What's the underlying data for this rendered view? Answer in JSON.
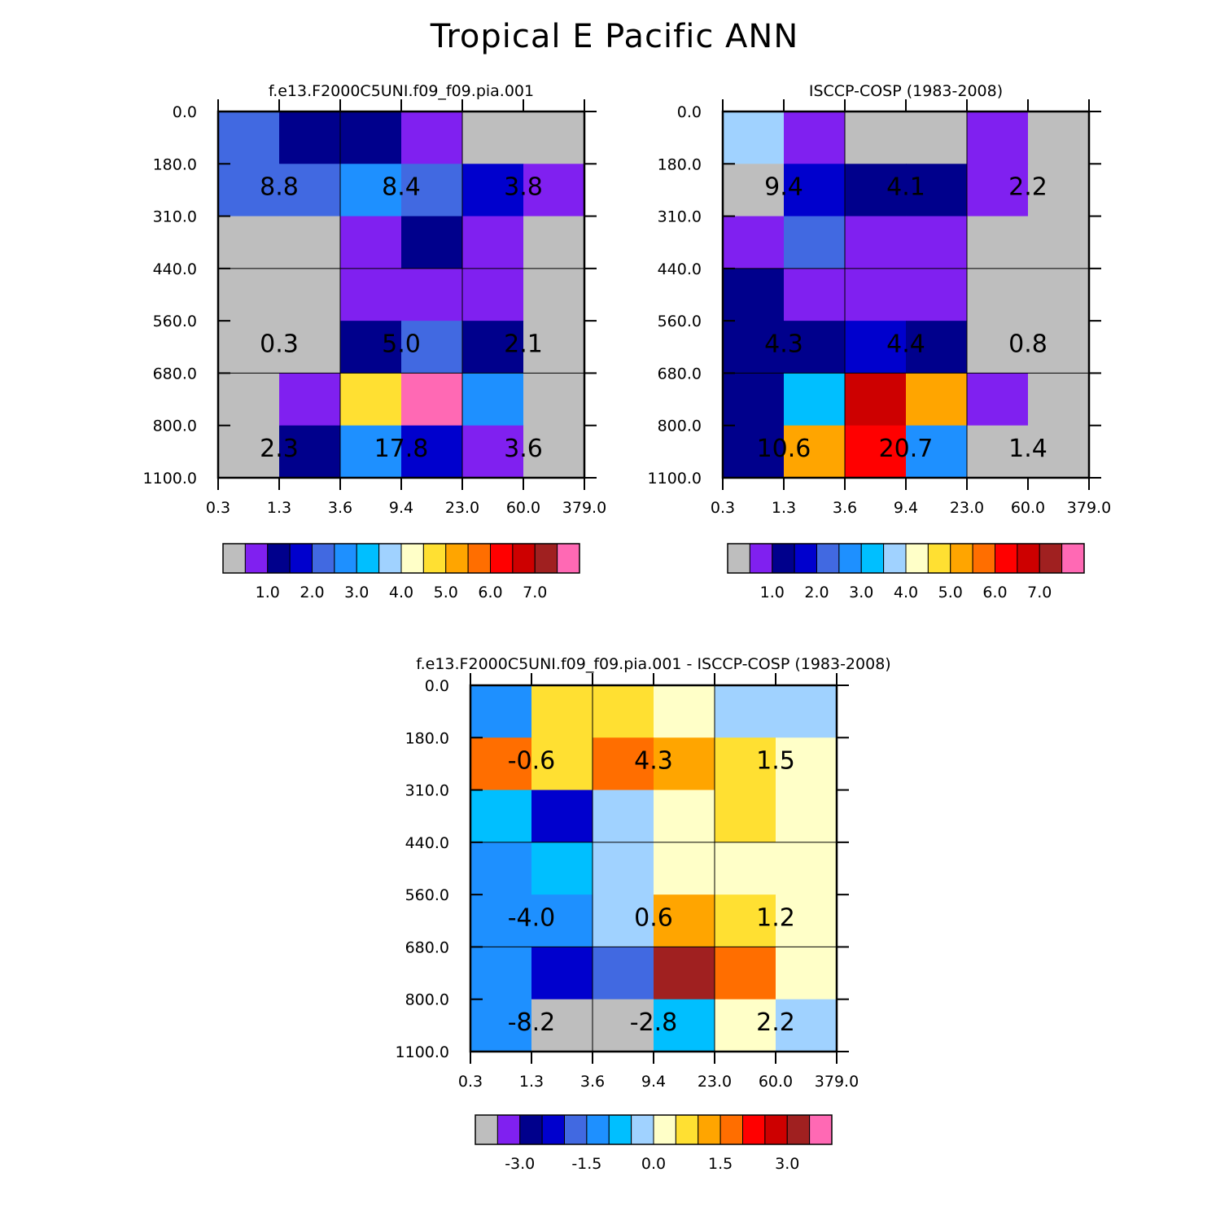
{
  "page_title": "Tropical E Pacific ANN",
  "colors": {
    "grey": "#bebebe",
    "purple": "#8020f0",
    "navy": "#00008c",
    "blue": "#0000cd",
    "royal": "#4169e1",
    "dodger": "#1e90ff",
    "sky": "#00bfff",
    "lightblue": "#a0d2ff",
    "cream": "#ffffc8",
    "yellow": "#ffe032",
    "gold": "#ffa500",
    "orange": "#ff6e00",
    "red": "#ff0000",
    "darkred": "#cd0000",
    "brown": "#a02020",
    "pink": "#ff69b4"
  },
  "chart_data": [
    {
      "type": "heatmap",
      "title": "f.e13.F2000C5UNI.f09_f09.pia.001",
      "xtick_labels": [
        "0.3",
        "1.3",
        "3.6",
        "9.4",
        "23.0",
        "60.0",
        "379.0"
      ],
      "ytick_labels": [
        "0.0",
        "180.0",
        "310.0",
        "440.0",
        "560.0",
        "680.0",
        "800.0",
        "1100.0"
      ],
      "cells": [
        [
          "royal",
          "navy",
          "navy",
          "purple",
          "grey",
          "grey"
        ],
        [
          "royal",
          "royal",
          "dodger",
          "royal",
          "blue",
          "purple"
        ],
        [
          "grey",
          "grey",
          "purple",
          "navy",
          "purple",
          "grey"
        ],
        [
          "grey",
          "grey",
          "purple",
          "purple",
          "purple",
          "grey"
        ],
        [
          "grey",
          "grey",
          "navy",
          "royal",
          "navy",
          "grey"
        ],
        [
          "grey",
          "purple",
          "yellow",
          "pink",
          "dodger",
          "grey"
        ],
        [
          "grey",
          "navy",
          "dodger",
          "blue",
          "purple",
          "grey"
        ]
      ],
      "annotations": [
        {
          "text": "8.8",
          "col": 1,
          "row": 1
        },
        {
          "text": "8.4",
          "col": 3,
          "row": 1
        },
        {
          "text": "3.8",
          "col": 5,
          "row": 1
        },
        {
          "text": "0.3",
          "col": 1,
          "row": 4
        },
        {
          "text": "5.0",
          "col": 3,
          "row": 4
        },
        {
          "text": "2.1",
          "col": 5,
          "row": 4
        },
        {
          "text": "2.3",
          "col": 1,
          "row": 6
        },
        {
          "text": "17.8",
          "col": 3,
          "row": 6
        },
        {
          "text": "3.6",
          "col": 5,
          "row": 6
        }
      ],
      "colorbar": {
        "colors": [
          "grey",
          "purple",
          "navy",
          "blue",
          "royal",
          "dodger",
          "sky",
          "lightblue",
          "cream",
          "yellow",
          "gold",
          "orange",
          "red",
          "darkred",
          "brown",
          "pink"
        ],
        "labels": [
          "1.0",
          "2.0",
          "3.0",
          "4.0",
          "5.0",
          "6.0",
          "7.0"
        ]
      }
    },
    {
      "type": "heatmap",
      "title": "ISCCP-COSP (1983-2008)",
      "xtick_labels": [
        "0.3",
        "1.3",
        "3.6",
        "9.4",
        "23.0",
        "60.0",
        "379.0"
      ],
      "ytick_labels": [
        "0.0",
        "180.0",
        "310.0",
        "440.0",
        "560.0",
        "680.0",
        "800.0",
        "1100.0"
      ],
      "cells": [
        [
          "lightblue",
          "purple",
          "grey",
          "grey",
          "purple",
          "grey"
        ],
        [
          "grey",
          "blue",
          "navy",
          "navy",
          "purple",
          "grey"
        ],
        [
          "purple",
          "royal",
          "purple",
          "purple",
          "grey",
          "grey"
        ],
        [
          "navy",
          "purple",
          "purple",
          "purple",
          "grey",
          "grey"
        ],
        [
          "navy",
          "navy",
          "blue",
          "navy",
          "grey",
          "grey"
        ],
        [
          "navy",
          "sky",
          "darkred",
          "gold",
          "purple",
          "grey"
        ],
        [
          "navy",
          "gold",
          "red",
          "dodger",
          "grey",
          "grey"
        ]
      ],
      "annotations": [
        {
          "text": "9.4",
          "col": 1,
          "row": 1
        },
        {
          "text": "4.1",
          "col": 3,
          "row": 1
        },
        {
          "text": "2.2",
          "col": 5,
          "row": 1
        },
        {
          "text": "4.3",
          "col": 1,
          "row": 4
        },
        {
          "text": "4.4",
          "col": 3,
          "row": 4
        },
        {
          "text": "0.8",
          "col": 5,
          "row": 4
        },
        {
          "text": "10.6",
          "col": 1,
          "row": 6
        },
        {
          "text": "20.7",
          "col": 3,
          "row": 6
        },
        {
          "text": "1.4",
          "col": 5,
          "row": 6
        }
      ],
      "colorbar": {
        "colors": [
          "grey",
          "purple",
          "navy",
          "blue",
          "royal",
          "dodger",
          "sky",
          "lightblue",
          "cream",
          "yellow",
          "gold",
          "orange",
          "red",
          "darkred",
          "brown",
          "pink"
        ],
        "labels": [
          "1.0",
          "2.0",
          "3.0",
          "4.0",
          "5.0",
          "6.0",
          "7.0"
        ]
      }
    },
    {
      "type": "heatmap",
      "title": "f.e13.F2000C5UNI.f09_f09.pia.001 - ISCCP-COSP (1983-2008)",
      "xtick_labels": [
        "0.3",
        "1.3",
        "3.6",
        "9.4",
        "23.0",
        "60.0",
        "379.0"
      ],
      "ytick_labels": [
        "0.0",
        "180.0",
        "310.0",
        "440.0",
        "560.0",
        "680.0",
        "800.0",
        "1100.0"
      ],
      "cells": [
        [
          "dodger",
          "yellow",
          "yellow",
          "cream",
          "lightblue",
          "lightblue"
        ],
        [
          "orange",
          "yellow",
          "orange",
          "gold",
          "yellow",
          "cream"
        ],
        [
          "sky",
          "blue",
          "lightblue",
          "cream",
          "yellow",
          "cream"
        ],
        [
          "dodger",
          "sky",
          "lightblue",
          "cream",
          "cream",
          "cream"
        ],
        [
          "dodger",
          "dodger",
          "lightblue",
          "gold",
          "yellow",
          "cream"
        ],
        [
          "dodger",
          "blue",
          "royal",
          "brown",
          "orange",
          "cream"
        ],
        [
          "dodger",
          "grey",
          "grey",
          "sky",
          "cream",
          "lightblue"
        ]
      ],
      "annotations": [
        {
          "text": "-0.6",
          "col": 1,
          "row": 1
        },
        {
          "text": "4.3",
          "col": 3,
          "row": 1
        },
        {
          "text": "1.5",
          "col": 5,
          "row": 1
        },
        {
          "text": "-4.0",
          "col": 1,
          "row": 4
        },
        {
          "text": "0.6",
          "col": 3,
          "row": 4
        },
        {
          "text": "1.2",
          "col": 5,
          "row": 4
        },
        {
          "text": "-8.2",
          "col": 1,
          "row": 6
        },
        {
          "text": "-2.8",
          "col": 3,
          "row": 6
        },
        {
          "text": "2.2",
          "col": 5,
          "row": 6
        }
      ],
      "colorbar": {
        "colors": [
          "grey",
          "purple",
          "navy",
          "blue",
          "royal",
          "dodger",
          "sky",
          "lightblue",
          "cream",
          "yellow",
          "gold",
          "orange",
          "red",
          "darkred",
          "brown",
          "pink"
        ],
        "labels": [
          "-3.0",
          "-1.5",
          "0.0",
          "1.5",
          "3.0"
        ]
      }
    }
  ]
}
